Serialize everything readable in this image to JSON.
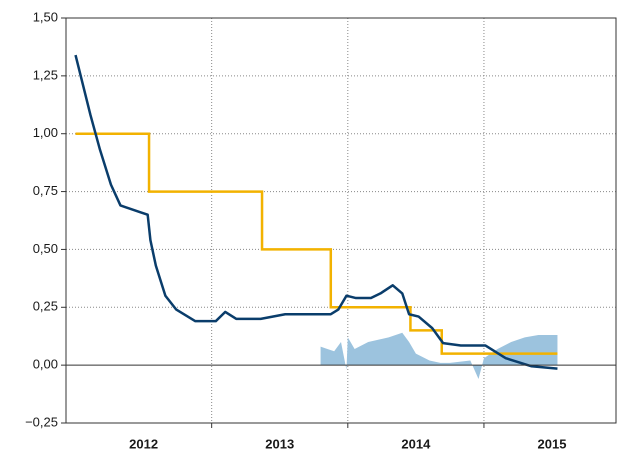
{
  "chart_data": {
    "type": "line",
    "categories": [
      "2012",
      "2013",
      "2014",
      "2015"
    ],
    "xlim": [
      2011.93,
      2015.97
    ],
    "xticks": [
      2013,
      2014,
      2015
    ],
    "ylim": [
      -0.25,
      1.5
    ],
    "yticks": [
      {
        "value": -0.25,
        "label": "−0,25"
      },
      {
        "value": 0,
        "label": "0,00"
      },
      {
        "value": 0.25,
        "label": "0,25"
      },
      {
        "value": 0.5,
        "label": "0,50"
      },
      {
        "value": 0.75,
        "label": "0,75"
      },
      {
        "value": 1,
        "label": "1,00"
      },
      {
        "value": 1.25,
        "label": "1,25"
      },
      {
        "value": 1.5,
        "label": "1,50"
      }
    ],
    "grid": true,
    "series": [
      {
        "kind": "area",
        "color": "#9cc3de",
        "x": [
          2013.8,
          2013.85,
          2013.9,
          2013.95,
          2013.99,
          2014.0,
          2014.05,
          2014.15,
          2014.3,
          2014.4,
          2014.45,
          2014.5,
          2014.6,
          2014.68,
          2014.75,
          2014.9,
          2014.96,
          2015.0,
          2015.1,
          2015.2,
          2015.3,
          2015.4,
          2015.54
        ],
        "values": [
          0.08,
          0.07,
          0.06,
          0.1,
          -0.02,
          0.12,
          0.07,
          0.1,
          0.12,
          0.14,
          0.1,
          0.05,
          0.02,
          0.01,
          0.01,
          0.02,
          -0.06,
          0.03,
          0.07,
          0.1,
          0.12,
          0.13,
          0.13
        ]
      },
      {
        "kind": "step",
        "color": "#f2b200",
        "x": [
          2012.0,
          2012.54,
          2013.37,
          2013.875,
          2014.46,
          2014.69,
          2015.54
        ],
        "values": [
          1,
          0.75,
          0.5,
          0.25,
          0.15,
          0.05,
          0.05
        ]
      },
      {
        "kind": "line",
        "color": "#0a3d6b",
        "x": [
          2012.0,
          2012.11,
          2012.18,
          2012.26,
          2012.33,
          2012.48,
          2012.53,
          2012.55,
          2012.59,
          2012.66,
          2012.74,
          2012.88,
          2013.03,
          2013.1,
          2013.18,
          2013.36,
          2013.54,
          2013.875,
          2013.93,
          2013.99,
          2014.06,
          2014.17,
          2014.24,
          2014.33,
          2014.4,
          2014.45,
          2014.52,
          2014.62,
          2014.7,
          2014.83,
          2015.01,
          2015.16,
          2015.35,
          2015.54
        ],
        "values": [
          1.34,
          1.08,
          0.93,
          0.78,
          0.69,
          0.66,
          0.65,
          0.54,
          0.43,
          0.3,
          0.24,
          0.19,
          0.19,
          0.23,
          0.2,
          0.2,
          0.22,
          0.22,
          0.24,
          0.3,
          0.29,
          0.29,
          0.31,
          0.345,
          0.31,
          0.22,
          0.21,
          0.16,
          0.095,
          0.085,
          0.085,
          0.03,
          -0.005,
          -0.015
        ]
      }
    ]
  }
}
